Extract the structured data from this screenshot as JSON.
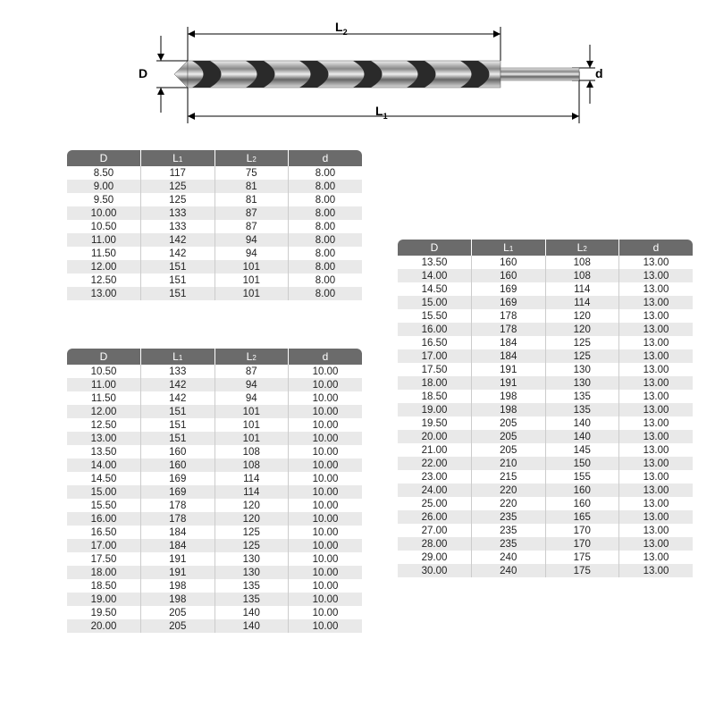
{
  "diagram": {
    "label_D": "D",
    "label_d": "d",
    "label_L1": "L",
    "label_L1_sub": "1",
    "label_L2": "L",
    "label_L2_sub": "2"
  },
  "headers": {
    "c1": "D",
    "c2": "L",
    "c2_sub": "1",
    "c3": "L",
    "c3_sub": "2",
    "c4": "d"
  },
  "table1": [
    [
      "8.50",
      "117",
      "75",
      "8.00"
    ],
    [
      "9.00",
      "125",
      "81",
      "8.00"
    ],
    [
      "9.50",
      "125",
      "81",
      "8.00"
    ],
    [
      "10.00",
      "133",
      "87",
      "8.00"
    ],
    [
      "10.50",
      "133",
      "87",
      "8.00"
    ],
    [
      "11.00",
      "142",
      "94",
      "8.00"
    ],
    [
      "11.50",
      "142",
      "94",
      "8.00"
    ],
    [
      "12.00",
      "151",
      "101",
      "8.00"
    ],
    [
      "12.50",
      "151",
      "101",
      "8.00"
    ],
    [
      "13.00",
      "151",
      "101",
      "8.00"
    ]
  ],
  "table2": [
    [
      "10.50",
      "133",
      "87",
      "10.00"
    ],
    [
      "11.00",
      "142",
      "94",
      "10.00"
    ],
    [
      "11.50",
      "142",
      "94",
      "10.00"
    ],
    [
      "12.00",
      "151",
      "101",
      "10.00"
    ],
    [
      "12.50",
      "151",
      "101",
      "10.00"
    ],
    [
      "13.00",
      "151",
      "101",
      "10.00"
    ],
    [
      "13.50",
      "160",
      "108",
      "10.00"
    ],
    [
      "14.00",
      "160",
      "108",
      "10.00"
    ],
    [
      "14.50",
      "169",
      "114",
      "10.00"
    ],
    [
      "15.00",
      "169",
      "114",
      "10.00"
    ],
    [
      "15.50",
      "178",
      "120",
      "10.00"
    ],
    [
      "16.00",
      "178",
      "120",
      "10.00"
    ],
    [
      "16.50",
      "184",
      "125",
      "10.00"
    ],
    [
      "17.00",
      "184",
      "125",
      "10.00"
    ],
    [
      "17.50",
      "191",
      "130",
      "10.00"
    ],
    [
      "18.00",
      "191",
      "130",
      "10.00"
    ],
    [
      "18.50",
      "198",
      "135",
      "10.00"
    ],
    [
      "19.00",
      "198",
      "135",
      "10.00"
    ],
    [
      "19.50",
      "205",
      "140",
      "10.00"
    ],
    [
      "20.00",
      "205",
      "140",
      "10.00"
    ]
  ],
  "table3": [
    [
      "13.50",
      "160",
      "108",
      "13.00"
    ],
    [
      "14.00",
      "160",
      "108",
      "13.00"
    ],
    [
      "14.50",
      "169",
      "114",
      "13.00"
    ],
    [
      "15.00",
      "169",
      "114",
      "13.00"
    ],
    [
      "15.50",
      "178",
      "120",
      "13.00"
    ],
    [
      "16.00",
      "178",
      "120",
      "13.00"
    ],
    [
      "16.50",
      "184",
      "125",
      "13.00"
    ],
    [
      "17.00",
      "184",
      "125",
      "13.00"
    ],
    [
      "17.50",
      "191",
      "130",
      "13.00"
    ],
    [
      "18.00",
      "191",
      "130",
      "13.00"
    ],
    [
      "18.50",
      "198",
      "135",
      "13.00"
    ],
    [
      "19.00",
      "198",
      "135",
      "13.00"
    ],
    [
      "19.50",
      "205",
      "140",
      "13.00"
    ],
    [
      "20.00",
      "205",
      "140",
      "13.00"
    ],
    [
      "21.00",
      "205",
      "145",
      "13.00"
    ],
    [
      "22.00",
      "210",
      "150",
      "13.00"
    ],
    [
      "23.00",
      "215",
      "155",
      "13.00"
    ],
    [
      "24.00",
      "220",
      "160",
      "13.00"
    ],
    [
      "25.00",
      "220",
      "160",
      "13.00"
    ],
    [
      "26.00",
      "235",
      "165",
      "13.00"
    ],
    [
      "27.00",
      "235",
      "170",
      "13.00"
    ],
    [
      "28.00",
      "235",
      "170",
      "13.00"
    ],
    [
      "29.00",
      "240",
      "175",
      "13.00"
    ],
    [
      "30.00",
      "240",
      "175",
      "13.00"
    ]
  ]
}
